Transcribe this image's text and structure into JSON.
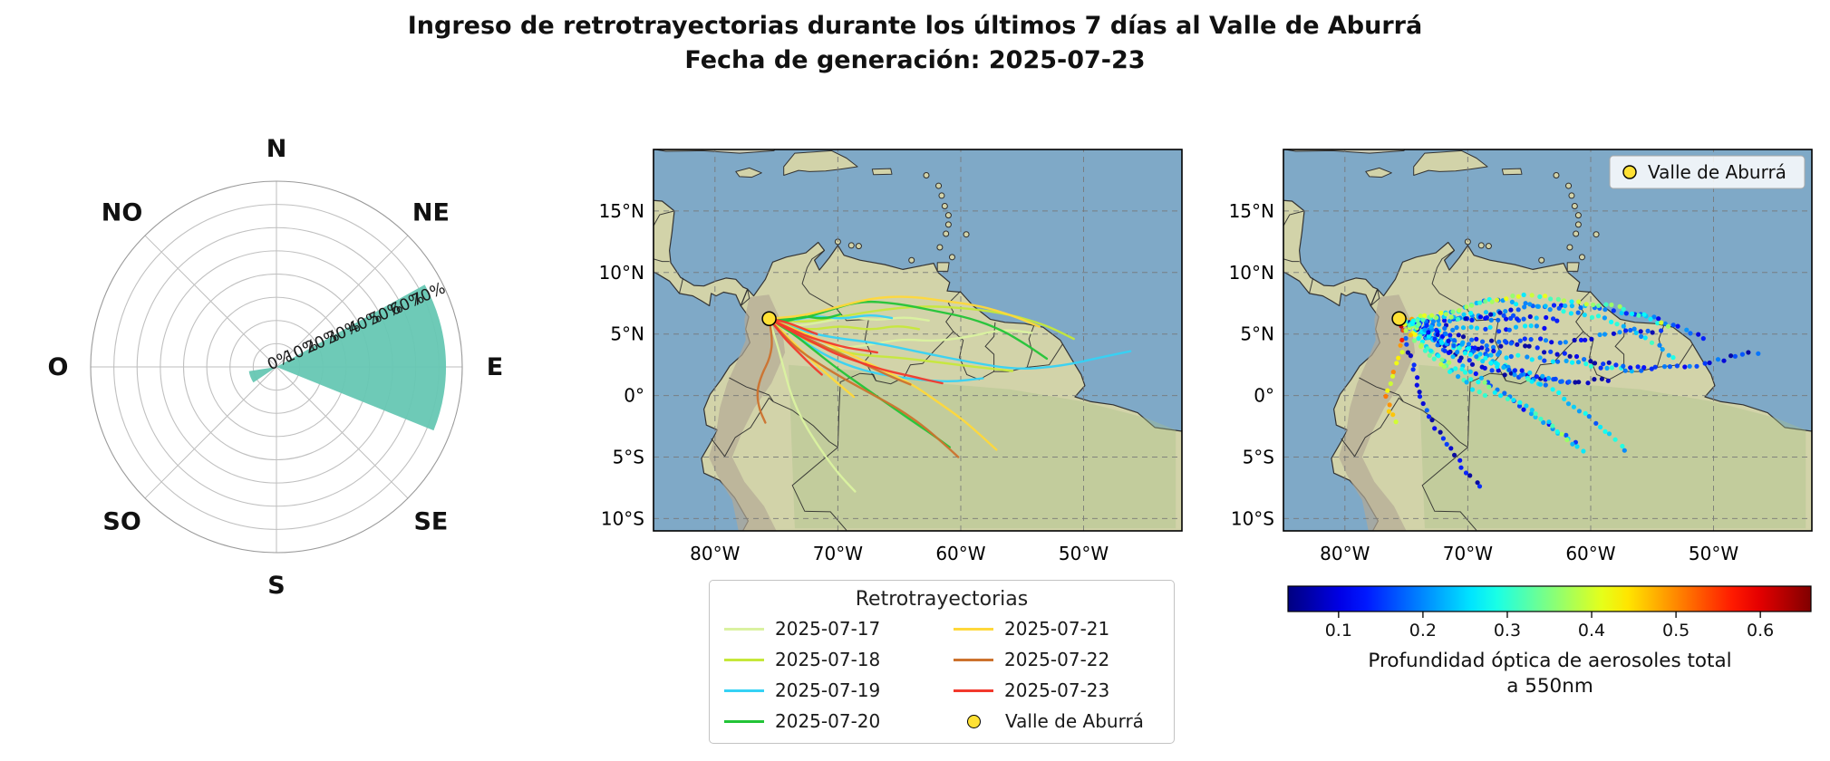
{
  "title": {
    "line1": "Ingreso de retrotrayectorias durante los últimos 7 días al Valle de Aburrá",
    "line2": "Fecha de generación: 2025-07-23"
  },
  "colors": {
    "rose_fill": "#66c7b3",
    "ocean": "#7fa9c7",
    "land": "#d2d3a9",
    "andes": "#b3a995",
    "amazon_tint": "#a8bf8a",
    "station_marker": "#ffe135",
    "grid_line": "#777777"
  },
  "windrose": {
    "compass_labels": [
      "N",
      "NE",
      "E",
      "SE",
      "S",
      "SO",
      "O",
      "NO"
    ],
    "radial_tick_labels": [
      "0%",
      "10%",
      "20%",
      "30%",
      "40%",
      "50%",
      "60%",
      "70%"
    ]
  },
  "map": {
    "extent": {
      "lon_min": -85,
      "lon_max": -42,
      "lat_min": -11,
      "lat_max": 20
    },
    "lat_ticks": [
      {
        "lat": 15,
        "label": "15°N"
      },
      {
        "lat": 10,
        "label": "10°N"
      },
      {
        "lat": 5,
        "label": "5°N"
      },
      {
        "lat": 0,
        "label": "0°"
      },
      {
        "lat": -5,
        "label": "5°S"
      },
      {
        "lat": -10,
        "label": "10°S"
      }
    ],
    "lon_ticks": [
      {
        "lon": -80,
        "label": "80°W"
      },
      {
        "lon": -70,
        "label": "70°W"
      },
      {
        "lon": -60,
        "label": "60°W"
      },
      {
        "lon": -50,
        "label": "50°W"
      }
    ]
  },
  "station": {
    "name": "Valle de Aburrá",
    "lon": -75.59,
    "lat": 6.25
  },
  "legend": {
    "title": "Retrotrayectorias",
    "station_label": "Valle de Aburrá"
  },
  "aod_legend_label": "Valle de Aburrá",
  "colorbar": {
    "colormap": "jet",
    "vmin": 0.04,
    "vmax": 0.66,
    "tick_values": [
      0.1,
      0.2,
      0.3,
      0.4,
      0.5,
      0.6
    ],
    "tick_labels": [
      "0.1",
      "0.2",
      "0.3",
      "0.4",
      "0.5",
      "0.6"
    ],
    "label_line1": "Profundidad óptica de aerosoles total",
    "label_line2": "a 550nm"
  },
  "chart_data": [
    {
      "type": "windrose",
      "units": "percent of incoming back-trajectories by direction",
      "direction_labels": [
        "N",
        "NE",
        "E",
        "SE",
        "S",
        "SO",
        "O",
        "NO"
      ],
      "r_ticks_pct": [
        0,
        10,
        20,
        30,
        40,
        50,
        60,
        70
      ],
      "r_max_pct": 80,
      "sectors": [
        {
          "start_deg": 61,
          "end_deg": 112,
          "value_pct": 73
        },
        {
          "start_deg": 236,
          "end_deg": 261,
          "value_pct": 12
        }
      ]
    },
    {
      "type": "line",
      "title": "Retrotrayectorias",
      "x_ticks": [
        "80°W",
        "70°W",
        "60°W",
        "50°W"
      ],
      "y_ticks": [
        "15°N",
        "10°N",
        "5°N",
        "0°",
        "5°S",
        "10°S"
      ],
      "station": {
        "name": "Valle de Aburrá",
        "lon": -75.59,
        "lat": 6.25
      },
      "series": [
        {
          "name": "2025-07-17",
          "color": "#daf2a0",
          "aod_base": [
            0.14,
            0.1,
            0.16
          ],
          "trajectories": [
            [
              [
                -75.6,
                6.25
              ],
              [
                -74.3,
                5.3
              ],
              [
                -72.4,
                4.3
              ],
              [
                -70.2,
                3.8
              ],
              [
                -67.5,
                4.1
              ],
              [
                -64.8,
                4.6
              ],
              [
                -62.0,
                4.4
              ],
              [
                -59.2,
                4.8
              ],
              [
                -56.6,
                5.4
              ],
              [
                -54.2,
                5.1
              ]
            ],
            [
              [
                -75.6,
                6.25
              ],
              [
                -75.0,
                4.4
              ],
              [
                -74.4,
                2.2
              ],
              [
                -73.8,
                0.0
              ],
              [
                -72.8,
                -2.2
              ],
              [
                -71.4,
                -4.4
              ],
              [
                -70.0,
                -6.3
              ],
              [
                -68.6,
                -7.8
              ]
            ],
            [
              [
                -75.6,
                6.25
              ],
              [
                -73.8,
                5.6
              ],
              [
                -71.6,
                5.9
              ],
              [
                -69.2,
                6.4
              ],
              [
                -66.8,
                6.1
              ],
              [
                -64.6,
                6.4
              ],
              [
                -62.6,
                6.1
              ]
            ]
          ]
        },
        {
          "name": "2025-07-18",
          "color": "#c6e83a",
          "aod_base": [
            0.17,
            0.22,
            0.19
          ],
          "trajectories": [
            [
              [
                -75.6,
                6.25
              ],
              [
                -73.2,
                5.9
              ],
              [
                -70.4,
                6.3
              ],
              [
                -67.0,
                6.9
              ],
              [
                -63.2,
                7.3
              ],
              [
                -59.4,
                7.1
              ],
              [
                -56.0,
                6.6
              ],
              [
                -53.0,
                5.7
              ],
              [
                -50.8,
                4.6
              ]
            ],
            [
              [
                -75.6,
                6.25
              ],
              [
                -73.6,
                4.9
              ],
              [
                -71.2,
                3.9
              ],
              [
                -68.4,
                3.3
              ],
              [
                -65.2,
                3.1
              ],
              [
                -61.8,
                2.7
              ],
              [
                -58.6,
                2.3
              ],
              [
                -55.8,
                2.0
              ]
            ],
            [
              [
                -75.6,
                6.25
              ],
              [
                -74.1,
                5.7
              ],
              [
                -72.2,
                5.3
              ],
              [
                -69.8,
                5.7
              ],
              [
                -67.4,
                5.3
              ],
              [
                -65.2,
                5.7
              ],
              [
                -63.4,
                5.4
              ]
            ]
          ]
        },
        {
          "name": "2025-07-19",
          "color": "#35d2f5",
          "aod_base": [
            0.12,
            0.09,
            0.15
          ],
          "trajectories": [
            [
              [
                -75.6,
                6.25
              ],
              [
                -73.2,
                5.3
              ],
              [
                -70.4,
                4.7
              ],
              [
                -67.0,
                4.3
              ],
              [
                -63.2,
                3.5
              ],
              [
                -59.2,
                2.7
              ],
              [
                -55.4,
                2.1
              ],
              [
                -51.8,
                2.4
              ],
              [
                -48.6,
                3.1
              ],
              [
                -46.2,
                3.6
              ]
            ],
            [
              [
                -75.6,
                6.25
              ],
              [
                -73.7,
                5.1
              ],
              [
                -71.8,
                3.7
              ],
              [
                -69.4,
                2.5
              ],
              [
                -66.6,
                1.7
              ],
              [
                -63.6,
                1.3
              ],
              [
                -60.8,
                1.1
              ],
              [
                -58.2,
                1.4
              ]
            ],
            [
              [
                -75.6,
                6.25
              ],
              [
                -74.1,
                6.0
              ],
              [
                -71.9,
                6.5
              ],
              [
                -69.6,
                6.2
              ],
              [
                -67.4,
                6.6
              ],
              [
                -65.6,
                6.3
              ]
            ]
          ]
        },
        {
          "name": "2025-07-20",
          "color": "#22c437",
          "aod_base": [
            0.24,
            0.18,
            0.3
          ],
          "trajectories": [
            [
              [
                -75.6,
                6.25
              ],
              [
                -73.4,
                6.1
              ],
              [
                -70.8,
                6.9
              ],
              [
                -68.2,
                7.7
              ],
              [
                -65.2,
                7.5
              ],
              [
                -62.2,
                6.9
              ],
              [
                -59.2,
                6.3
              ],
              [
                -56.6,
                5.3
              ],
              [
                -54.6,
                4.1
              ],
              [
                -53.0,
                3.0
              ]
            ],
            [
              [
                -75.6,
                6.25
              ],
              [
                -74.0,
                5.3
              ],
              [
                -72.2,
                3.9
              ],
              [
                -70.2,
                2.3
              ],
              [
                -68.2,
                0.9
              ],
              [
                -66.2,
                -0.5
              ],
              [
                -64.2,
                -1.9
              ],
              [
                -62.4,
                -3.1
              ],
              [
                -60.9,
                -4.2
              ]
            ],
            [
              [
                -75.6,
                6.25
              ],
              [
                -74.3,
                5.9
              ],
              [
                -72.9,
                6.5
              ],
              [
                -71.2,
                6.2
              ],
              [
                -69.8,
                6.6
              ]
            ]
          ]
        },
        {
          "name": "2025-07-21",
          "color": "#ffd83a",
          "aod_base": [
            0.34,
            0.22,
            0.28
          ],
          "trajectories": [
            [
              [
                -75.6,
                6.25
              ],
              [
                -73.2,
                6.4
              ],
              [
                -70.4,
                7.1
              ],
              [
                -67.4,
                7.9
              ],
              [
                -64.4,
                8.1
              ],
              [
                -61.4,
                7.7
              ],
              [
                -58.4,
                7.3
              ],
              [
                -55.8,
                6.5
              ],
              [
                -53.6,
                5.6
              ]
            ],
            [
              [
                -75.6,
                6.25
              ],
              [
                -73.7,
                5.5
              ],
              [
                -71.4,
                4.5
              ],
              [
                -68.9,
                3.3
              ],
              [
                -66.4,
                2.1
              ],
              [
                -63.9,
                0.9
              ],
              [
                -61.9,
                -0.5
              ],
              [
                -59.9,
                -1.9
              ],
              [
                -58.3,
                -3.3
              ],
              [
                -57.1,
                -4.4
              ]
            ],
            [
              [
                -75.6,
                6.25
              ],
              [
                -74.2,
                4.9
              ],
              [
                -72.8,
                3.5
              ],
              [
                -71.3,
                2.1
              ],
              [
                -69.9,
                0.9
              ],
              [
                -68.7,
                -0.1
              ]
            ]
          ]
        },
        {
          "name": "2025-07-22",
          "color": "#cc722e",
          "aod_base": [
            0.3,
            0.44,
            0.25
          ],
          "trajectories": [
            [
              [
                -75.6,
                6.25
              ],
              [
                -74.6,
                5.1
              ],
              [
                -73.2,
                3.7
              ],
              [
                -71.4,
                2.5
              ],
              [
                -69.4,
                1.3
              ],
              [
                -67.2,
                0.1
              ],
              [
                -65.0,
                -1.1
              ],
              [
                -63.0,
                -2.5
              ],
              [
                -61.4,
                -3.9
              ],
              [
                -60.2,
                -5.0
              ]
            ],
            [
              [
                -75.6,
                6.25
              ],
              [
                -75.3,
                4.7
              ],
              [
                -75.5,
                3.1
              ],
              [
                -76.2,
                1.7
              ],
              [
                -76.6,
                0.3
              ],
              [
                -76.4,
                -1.1
              ],
              [
                -75.9,
                -2.2
              ]
            ],
            [
              [
                -75.6,
                6.25
              ],
              [
                -74.3,
                5.5
              ],
              [
                -72.6,
                4.7
              ],
              [
                -70.9,
                3.9
              ],
              [
                -69.1,
                3.1
              ],
              [
                -67.3,
                2.3
              ],
              [
                -65.6,
                1.5
              ],
              [
                -64.1,
                0.9
              ]
            ]
          ]
        },
        {
          "name": "2025-07-23",
          "color": "#f2392c",
          "aod_base": [
            0.2,
            0.15,
            0.35,
            0.18
          ],
          "trajectories": [
            [
              [
                -75.6,
                6.25
              ],
              [
                -74.6,
                5.7
              ],
              [
                -73.2,
                4.9
              ],
              [
                -71.6,
                4.1
              ],
              [
                -70.0,
                3.3
              ],
              [
                -68.2,
                2.7
              ],
              [
                -66.4,
                2.1
              ],
              [
                -64.6,
                1.7
              ],
              [
                -62.9,
                1.3
              ],
              [
                -61.5,
                1.0
              ]
            ],
            [
              [
                -75.6,
                6.25
              ],
              [
                -74.8,
                5.9
              ],
              [
                -73.6,
                5.3
              ],
              [
                -72.2,
                4.7
              ],
              [
                -70.8,
                4.3
              ],
              [
                -69.4,
                3.9
              ],
              [
                -68.0,
                3.7
              ],
              [
                -66.8,
                3.5
              ]
            ],
            [
              [
                -75.6,
                6.25
              ],
              [
                -75.0,
                5.5
              ],
              [
                -74.2,
                4.5
              ],
              [
                -73.2,
                3.5
              ],
              [
                -72.2,
                2.5
              ],
              [
                -71.3,
                1.7
              ]
            ],
            [
              [
                -75.6,
                6.25
              ],
              [
                -74.5,
                6.05
              ],
              [
                -73.5,
                5.7
              ],
              [
                -72.5,
                5.3
              ],
              [
                -71.7,
                5.0
              ]
            ]
          ]
        }
      ]
    },
    {
      "type": "scatter",
      "title": "Profundidad óptica de aerosoles total a 550nm",
      "colormap": "jet",
      "vmin": 0.04,
      "vmax": 0.66,
      "source": "trajectories",
      "sample_step_deg": 0.55,
      "jitter_deg": 0.3,
      "aod_noise": 0.16,
      "station": {
        "name": "Valle de Aburrá",
        "lon": -75.59,
        "lat": 6.25
      }
    }
  ]
}
